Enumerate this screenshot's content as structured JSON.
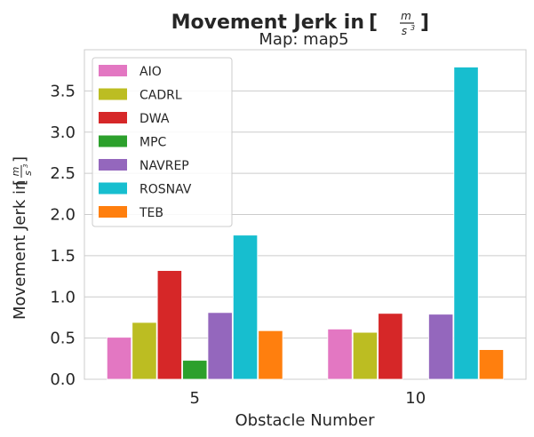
{
  "chart_data": {
    "type": "bar",
    "title": "Movement Jerk in",
    "title_unit": {
      "numerator": "m",
      "denominator": "s",
      "exponent": "3"
    },
    "subtitle": "Map: map5",
    "xlabel": "Obstacle Number",
    "ylabel": "Movement Jerk in",
    "ylabel_unit": {
      "numerator": "m",
      "denominator": "s",
      "exponent": "3"
    },
    "categories": [
      "5",
      "10"
    ],
    "ylim": [
      0,
      4.0
    ],
    "yticks": [
      "0.0",
      "0.5",
      "1.0",
      "1.5",
      "2.0",
      "2.5",
      "3.0",
      "3.5"
    ],
    "ytick_values": [
      0.0,
      0.5,
      1.0,
      1.5,
      2.0,
      2.5,
      3.0,
      3.5
    ],
    "grid": "horizontal",
    "legend_position": "top-left",
    "series": [
      {
        "name": "AIO",
        "color": "#e377c2",
        "values": [
          0.51,
          0.61
        ]
      },
      {
        "name": "CADRL",
        "color": "#bcbd22",
        "values": [
          0.69,
          0.57
        ]
      },
      {
        "name": "DWA",
        "color": "#d62728",
        "values": [
          1.32,
          0.8
        ]
      },
      {
        "name": "MPC",
        "color": "#2ca02c",
        "values": [
          0.23,
          null
        ]
      },
      {
        "name": "NAVREP",
        "color": "#9467bd",
        "values": [
          0.81,
          0.79
        ]
      },
      {
        "name": "ROSNAV",
        "color": "#17becf",
        "values": [
          1.75,
          3.79
        ]
      },
      {
        "name": "TEB",
        "color": "#ff7f0e",
        "values": [
          0.59,
          0.36
        ]
      }
    ]
  }
}
